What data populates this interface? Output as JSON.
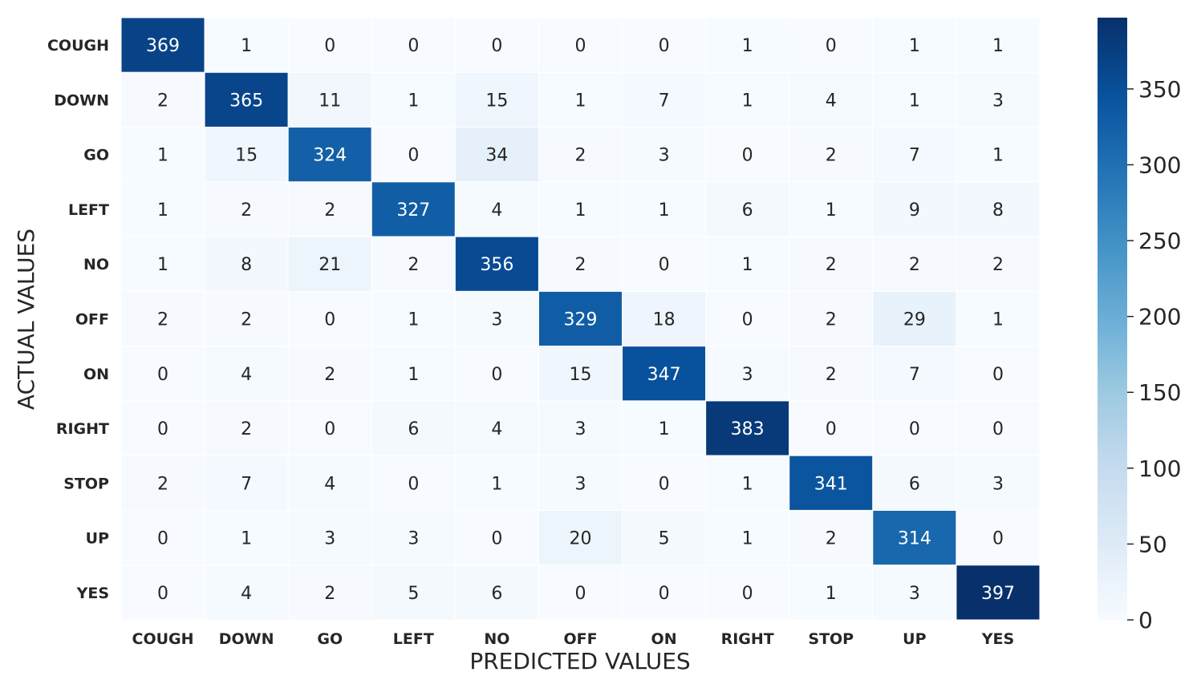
{
  "chart_data": {
    "type": "heatmap",
    "title": "",
    "xlabel": "PREDICTED VALUES",
    "ylabel": "ACTUAL VALUES",
    "x_categories": [
      "COUGH",
      "DOWN",
      "GO",
      "LEFT",
      "NO",
      "OFF",
      "ON",
      "RIGHT",
      "STOP",
      "UP",
      "YES"
    ],
    "y_categories": [
      "COUGH",
      "DOWN",
      "GO",
      "LEFT",
      "NO",
      "OFF",
      "ON",
      "RIGHT",
      "STOP",
      "UP",
      "YES"
    ],
    "matrix": [
      [
        369,
        1,
        0,
        0,
        0,
        0,
        0,
        1,
        0,
        1,
        1
      ],
      [
        2,
        365,
        11,
        1,
        15,
        1,
        7,
        1,
        4,
        1,
        3
      ],
      [
        1,
        15,
        324,
        0,
        34,
        2,
        3,
        0,
        2,
        7,
        1
      ],
      [
        1,
        2,
        2,
        327,
        4,
        1,
        1,
        6,
        1,
        9,
        8
      ],
      [
        1,
        8,
        21,
        2,
        356,
        2,
        0,
        1,
        2,
        2,
        2
      ],
      [
        2,
        2,
        0,
        1,
        3,
        329,
        18,
        0,
        2,
        29,
        1
      ],
      [
        0,
        4,
        2,
        1,
        0,
        15,
        347,
        3,
        2,
        7,
        0
      ],
      [
        0,
        2,
        0,
        6,
        4,
        3,
        1,
        383,
        0,
        0,
        0
      ],
      [
        2,
        7,
        4,
        0,
        1,
        3,
        0,
        1,
        341,
        6,
        3
      ],
      [
        0,
        1,
        3,
        3,
        0,
        20,
        5,
        1,
        2,
        314,
        0
      ],
      [
        0,
        4,
        2,
        5,
        6,
        0,
        0,
        0,
        1,
        3,
        397
      ]
    ],
    "colorscale": "Blues",
    "vmin": 0,
    "vmax": 397,
    "colorbar_ticks": [
      0,
      50,
      100,
      150,
      200,
      250,
      300,
      350
    ],
    "grid": false
  }
}
